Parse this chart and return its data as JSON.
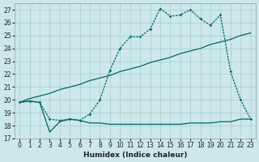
{
  "bg_color": "#cce8e8",
  "grid_color": "#aacccc",
  "line_color": "#006666",
  "xlabel": "Humidex (Indice chaleur)",
  "xlim": [
    -0.5,
    23.5
  ],
  "ylim": [
    17,
    27.5
  ],
  "yticks": [
    17,
    18,
    19,
    20,
    21,
    22,
    23,
    24,
    25,
    26,
    27
  ],
  "xticks": [
    0,
    1,
    2,
    3,
    4,
    5,
    6,
    7,
    8,
    9,
    10,
    11,
    12,
    13,
    14,
    15,
    16,
    17,
    18,
    19,
    20,
    21,
    22,
    23
  ],
  "s1_x": [
    0,
    1,
    2,
    3,
    4,
    5,
    6,
    7,
    8,
    9,
    10,
    11,
    12,
    13,
    14,
    15,
    16,
    17,
    18,
    19,
    20,
    21,
    22,
    23
  ],
  "s1_y": [
    19.8,
    19.9,
    19.8,
    17.5,
    18.3,
    18.5,
    18.4,
    18.2,
    18.2,
    18.1,
    18.1,
    18.1,
    18.1,
    18.1,
    18.1,
    18.1,
    18.1,
    18.2,
    18.2,
    18.2,
    18.3,
    18.3,
    18.5,
    18.5
  ],
  "s2_x": [
    0,
    1,
    2,
    3,
    4,
    5,
    6,
    7,
    8,
    9,
    10,
    11,
    12,
    13,
    14,
    15,
    16,
    17,
    18,
    19,
    20,
    21,
    22,
    23
  ],
  "s2_y": [
    19.8,
    20.1,
    20.3,
    20.5,
    20.8,
    21.0,
    21.2,
    21.5,
    21.7,
    21.9,
    22.2,
    22.4,
    22.6,
    22.9,
    23.1,
    23.3,
    23.6,
    23.8,
    24.0,
    24.3,
    24.5,
    24.7,
    25.0,
    25.2
  ],
  "s3_x": [
    0,
    1,
    2,
    3,
    4,
    5,
    6,
    7,
    8,
    9,
    10,
    11,
    12,
    13,
    14,
    15,
    16,
    17,
    18,
    19,
    20,
    21,
    22,
    23
  ],
  "s3_y": [
    19.8,
    19.9,
    19.8,
    18.5,
    18.4,
    18.5,
    18.4,
    18.9,
    20.0,
    22.3,
    24.0,
    24.9,
    24.9,
    25.5,
    27.1,
    26.5,
    26.6,
    27.0,
    26.3,
    25.8,
    26.6,
    22.2,
    20.0,
    18.5
  ],
  "s1_dotted": false,
  "s2_dotted": false,
  "s3_dotted": true
}
